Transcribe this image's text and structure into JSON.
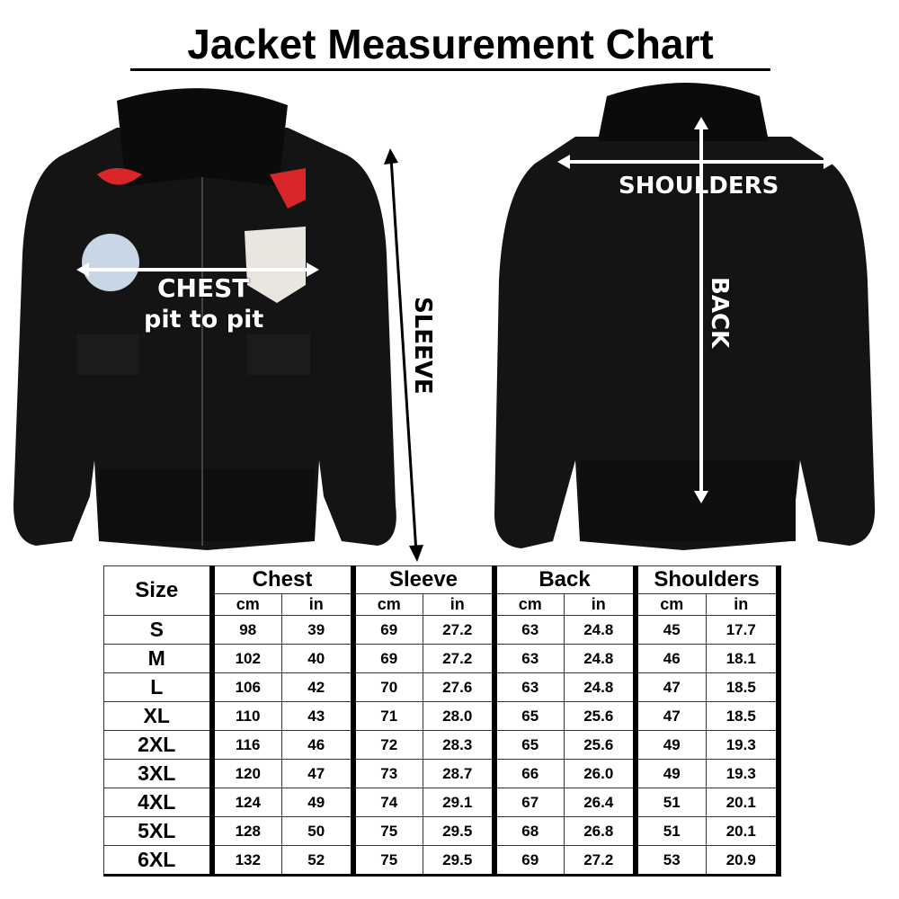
{
  "title": "Jacket Measurement Chart",
  "labels": {
    "chest": "CHEST",
    "chest_sub": "pit to pit",
    "sleeve": "SLEEVE",
    "shoulders": "SHOULDERS",
    "back": "BACK"
  },
  "colors": {
    "jacket": "#141414",
    "fur": "#0b0b0b",
    "patch_red": "#d8262a",
    "text": "#000000",
    "label": "#ffffff"
  },
  "table": {
    "size_header": "Size",
    "groups": [
      "Chest",
      "Sleeve",
      "Back",
      "Shoulders"
    ],
    "units": [
      "cm",
      "in"
    ],
    "rows": [
      [
        "S",
        "98",
        "39",
        "69",
        "27.2",
        "63",
        "24.8",
        "45",
        "17.7"
      ],
      [
        "M",
        "102",
        "40",
        "69",
        "27.2",
        "63",
        "24.8",
        "46",
        "18.1"
      ],
      [
        "L",
        "106",
        "42",
        "70",
        "27.6",
        "63",
        "24.8",
        "47",
        "18.5"
      ],
      [
        "XL",
        "110",
        "43",
        "71",
        "28.0",
        "65",
        "25.6",
        "47",
        "18.5"
      ],
      [
        "2XL",
        "116",
        "46",
        "72",
        "28.3",
        "65",
        "25.6",
        "49",
        "19.3"
      ],
      [
        "3XL",
        "120",
        "47",
        "73",
        "28.7",
        "66",
        "26.0",
        "49",
        "19.3"
      ],
      [
        "4XL",
        "124",
        "49",
        "74",
        "29.1",
        "67",
        "26.4",
        "51",
        "20.1"
      ],
      [
        "5XL",
        "128",
        "50",
        "75",
        "29.5",
        "68",
        "26.8",
        "51",
        "20.1"
      ],
      [
        "6XL",
        "132",
        "52",
        "75",
        "29.5",
        "69",
        "27.2",
        "53",
        "20.9"
      ]
    ]
  }
}
